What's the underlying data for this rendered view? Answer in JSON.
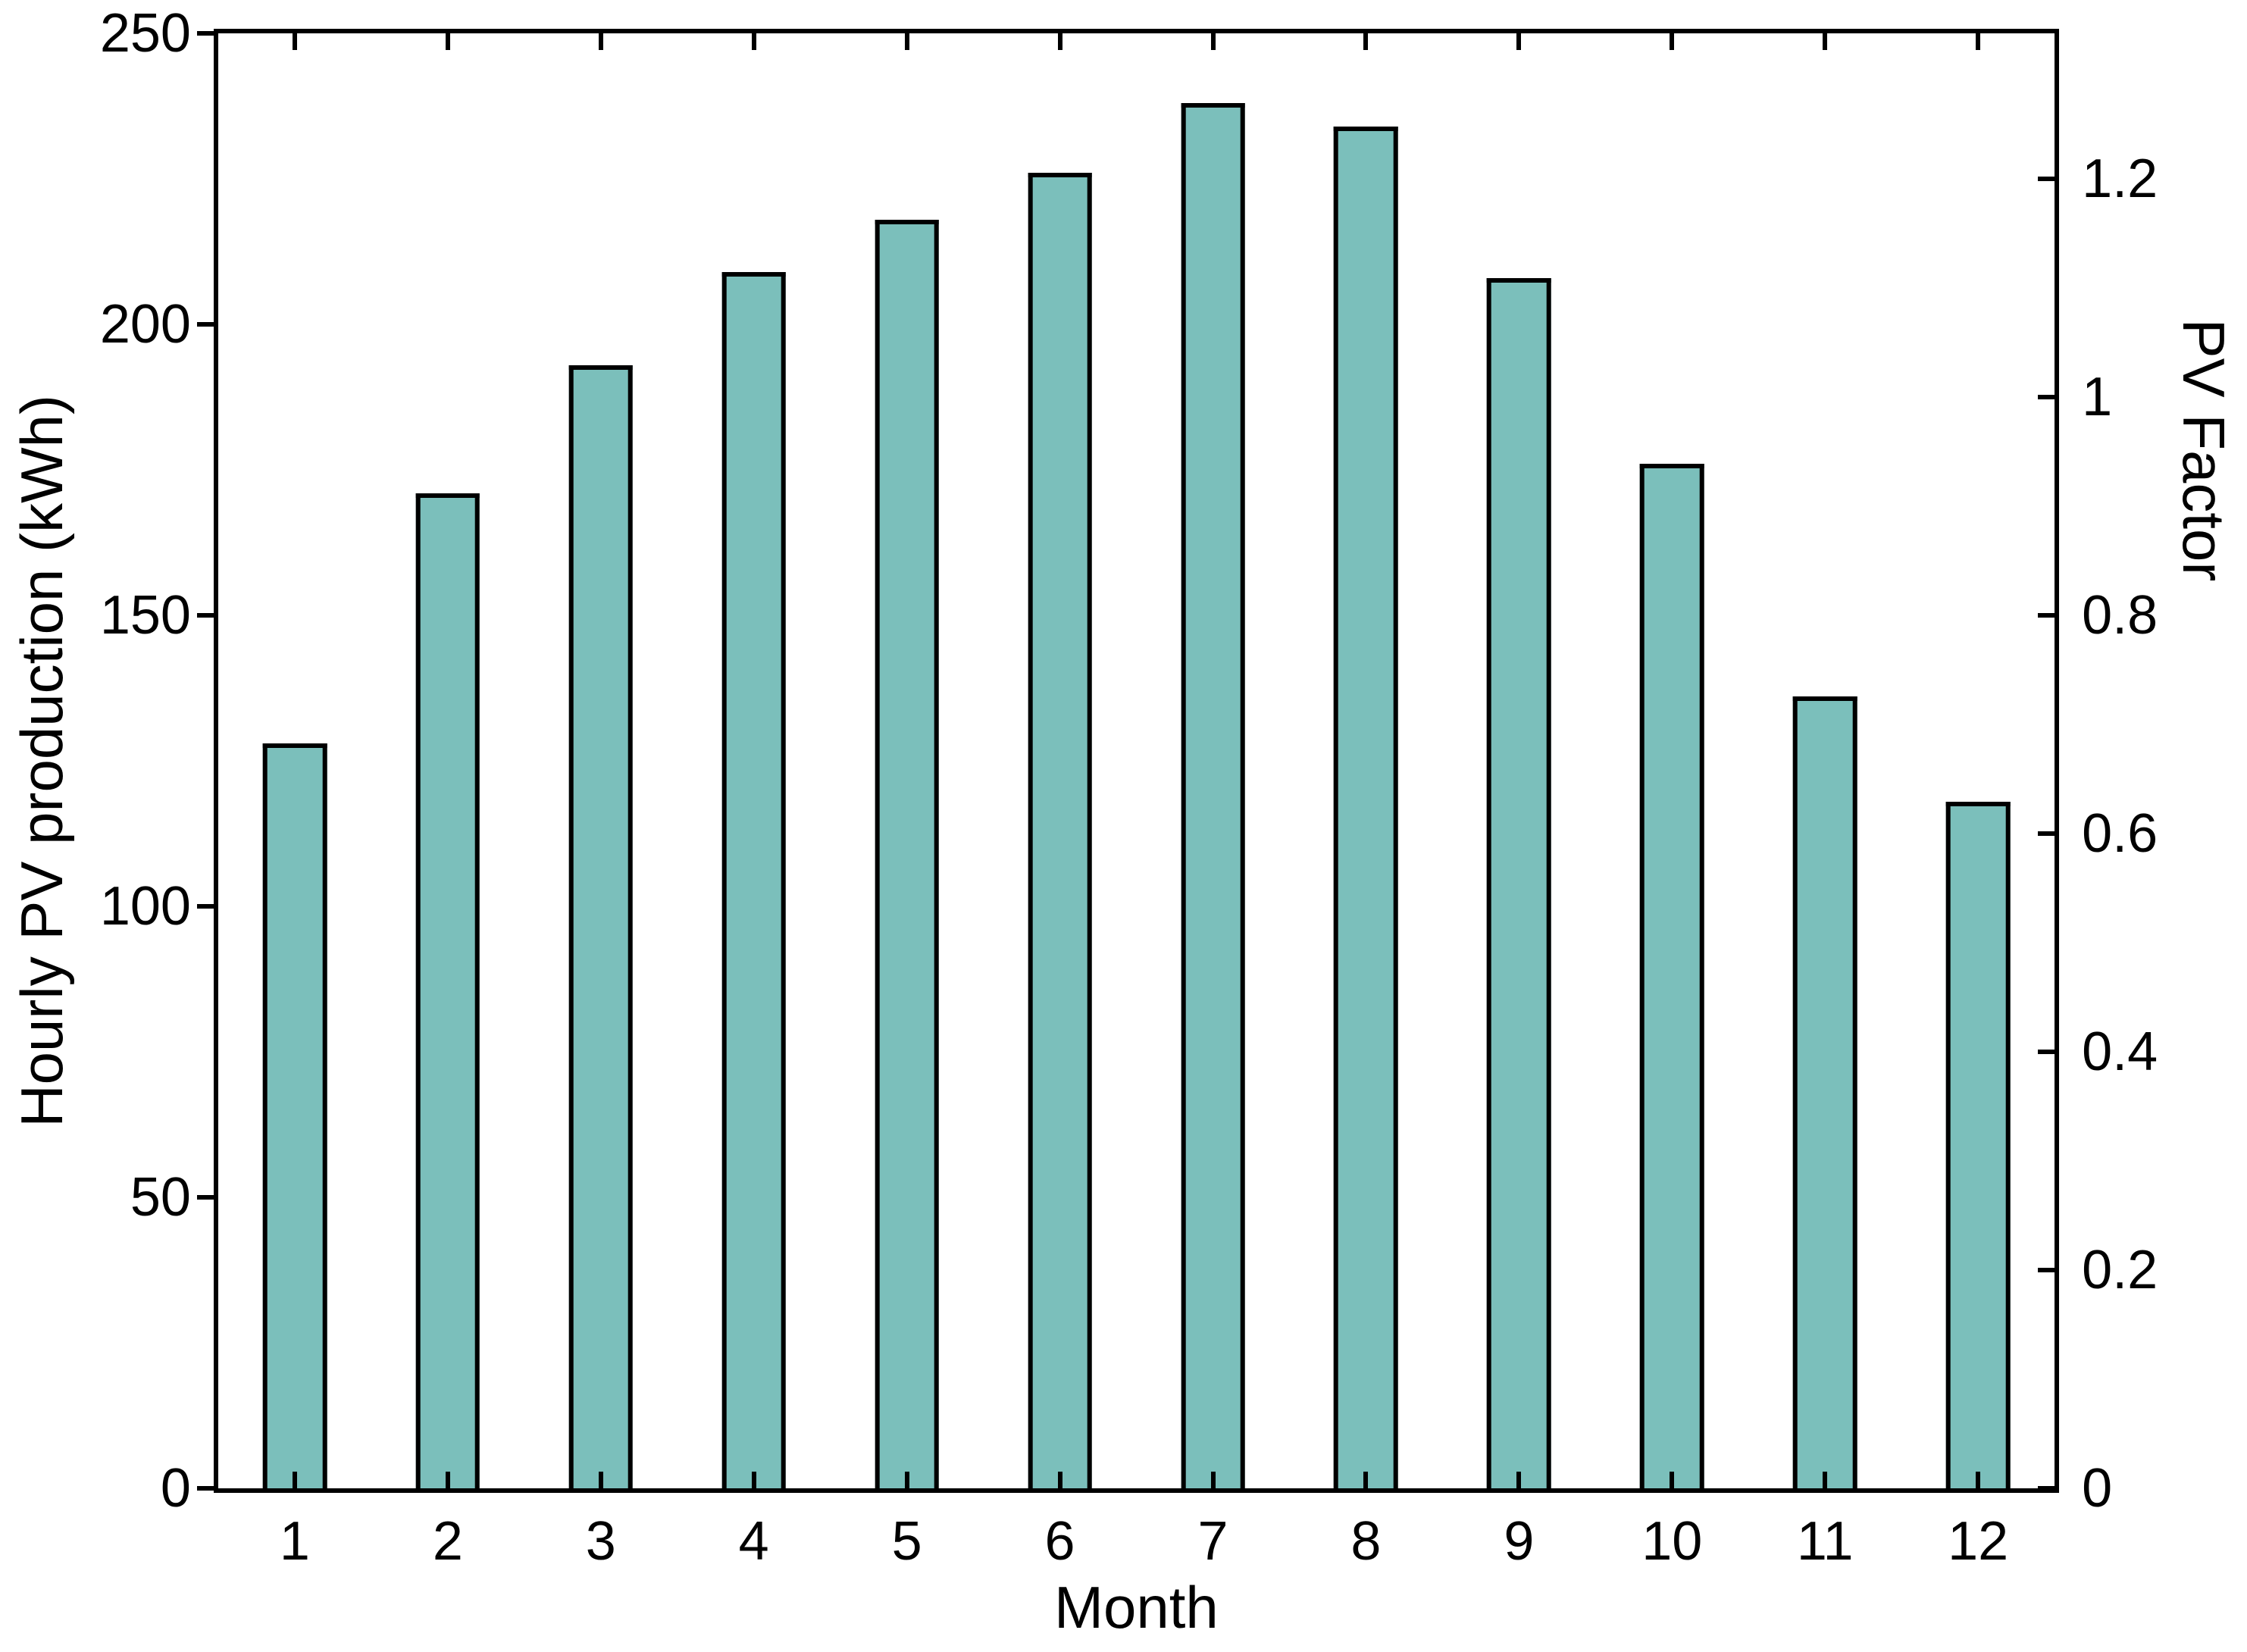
{
  "chart_data": {
    "type": "bar",
    "title": "",
    "xlabel": "Month",
    "ylabel_left": "Hourly PV production (kWh)",
    "ylabel_right": "PV Factor",
    "categories": [
      "1",
      "2",
      "3",
      "4",
      "5",
      "6",
      "7",
      "8",
      "9",
      "10",
      "11",
      "12"
    ],
    "values": [
      128,
      171,
      193,
      209,
      218,
      226,
      238,
      234,
      208,
      176,
      136,
      118
    ],
    "pv_factor_values": [
      0.683,
      0.912,
      1.029,
      1.115,
      1.163,
      1.205,
      1.269,
      1.248,
      1.109,
      0.939,
      0.725,
      0.629
    ],
    "ylim_left": [
      0,
      250
    ],
    "ylim_right": [
      0,
      1.3333
    ],
    "left_axis_ticks": {
      "values": [
        0,
        50,
        100,
        150,
        200,
        250
      ],
      "labels": [
        "0",
        "50",
        "100",
        "150",
        "200",
        "250"
      ]
    },
    "right_axis_ticks": {
      "values": [
        0,
        0.2,
        0.4,
        0.6,
        0.8,
        1,
        1.2
      ],
      "labels": [
        "0",
        "0.2",
        "0.4",
        "0.6",
        "0.8",
        "1",
        "1.2"
      ]
    },
    "bar_color": "#7bbfbb",
    "bar_edge_color": "#000000",
    "axis_color": "#000000",
    "background_color": "#ffffff",
    "grid": false,
    "legend": "none"
  }
}
